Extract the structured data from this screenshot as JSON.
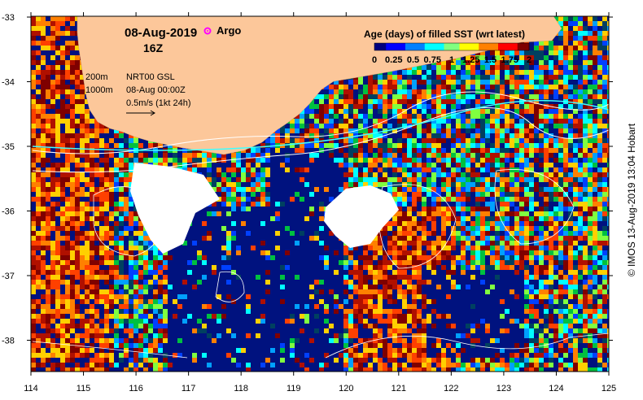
{
  "map": {
    "title_date": "08-Aug-2019",
    "title_hour": "16Z",
    "argo_label": "Argo",
    "legend_title": "Age (days) of filled SST (wrt latest)",
    "colorbar_ticks": [
      "0",
      "0.25",
      "0.5",
      "0.75",
      "1",
      "1.25",
      "1.5",
      "1.75",
      "2"
    ],
    "colorbar_colors": [
      "#00007f",
      "#0000ff",
      "#0080ff",
      "#00ffff",
      "#80ff80",
      "#ffff00",
      "#ff8000",
      "#ff0000",
      "#7f0000"
    ],
    "contour_200": "200m",
    "contour_1000": "1000m",
    "current_source": "NRT00 GSL",
    "current_time": "08-Aug 00:00Z",
    "current_scale": "0.5m/s (1kt 24h)",
    "credit": "© IMOS 13-Aug-2019 13:04 Hobart",
    "lat_labels": [
      "-33",
      "-34",
      "-35",
      "-36",
      "-37",
      "-38"
    ],
    "lon_labels": [
      "114",
      "115",
      "116",
      "117",
      "118",
      "119",
      "120",
      "121",
      "122",
      "123",
      "124",
      "125"
    ],
    "land_color": "#fcc79a",
    "argo_color": "#ff00ff"
  }
}
